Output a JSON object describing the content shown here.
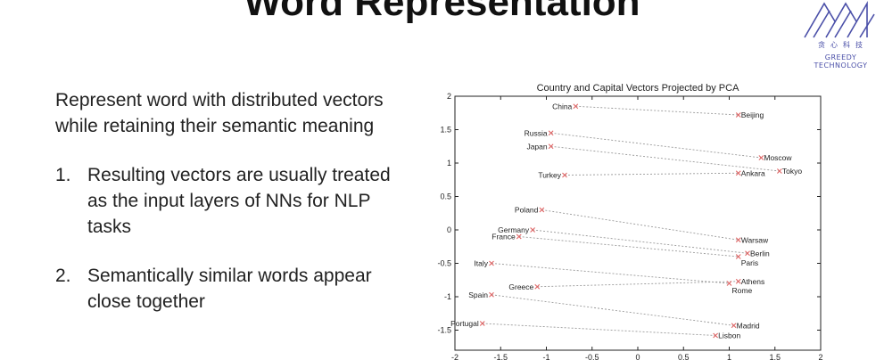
{
  "slide": {
    "title": "Word Representation",
    "intro": "Represent word with distributed vectors while retaining their semantic meaning",
    "points": [
      {
        "number": "1.",
        "text": "Resulting vectors are usually treated as the input layers of NNs for NLP tasks"
      },
      {
        "number": "2.",
        "text": "Semantically similar words appear close together"
      }
    ]
  },
  "logo": {
    "chinese": "贪心科技",
    "english": "GREEDY TECHNOLOGY",
    "color": "#4a4fa8"
  },
  "chart_data": {
    "type": "scatter",
    "title": "Country and Capital Vectors Projected by PCA",
    "xlabel": "",
    "ylabel": "",
    "xlim": [
      -2,
      2
    ],
    "ylim": [
      -1.8,
      2.0
    ],
    "xticks": [
      "-2",
      "-1.5",
      "-1",
      "-0.5",
      "0",
      "0.5",
      "1",
      "1.5",
      "2"
    ],
    "yticks": [
      "2",
      "1.5",
      "1",
      "0.5",
      "0",
      "-0.5",
      "-1",
      "-1.5"
    ],
    "grid": false,
    "point_color": "#e06666",
    "line_color": "#9a9a9a",
    "countries": [
      {
        "name": "China",
        "x": -0.68,
        "y": 1.85
      },
      {
        "name": "Russia",
        "x": -0.95,
        "y": 1.45
      },
      {
        "name": "Japan",
        "x": -0.95,
        "y": 1.25
      },
      {
        "name": "Turkey",
        "x": -0.8,
        "y": 0.82
      },
      {
        "name": "Poland",
        "x": -1.05,
        "y": 0.3
      },
      {
        "name": "Germany",
        "x": -1.15,
        "y": 0.0
      },
      {
        "name": "France",
        "x": -1.3,
        "y": -0.1
      },
      {
        "name": "Italy",
        "x": -1.6,
        "y": -0.5
      },
      {
        "name": "Greece",
        "x": -1.1,
        "y": -0.85
      },
      {
        "name": "Spain",
        "x": -1.6,
        "y": -0.97
      },
      {
        "name": "Portugal",
        "x": -1.7,
        "y": -1.4
      }
    ],
    "capitals": [
      {
        "name": "Beijing",
        "x": 1.1,
        "y": 1.72
      },
      {
        "name": "Moscow",
        "x": 1.35,
        "y": 1.08
      },
      {
        "name": "Tokyo",
        "x": 1.55,
        "y": 0.88
      },
      {
        "name": "Ankara",
        "x": 1.1,
        "y": 0.85
      },
      {
        "name": "Warsaw",
        "x": 1.1,
        "y": -0.15
      },
      {
        "name": "Berlin",
        "x": 1.2,
        "y": -0.35
      },
      {
        "name": "Paris",
        "x": 1.1,
        "y": -0.4
      },
      {
        "name": "Athens",
        "x": 1.1,
        "y": -0.77
      },
      {
        "name": "Rome",
        "x": 1.0,
        "y": -0.8
      },
      {
        "name": "Madrid",
        "x": 1.05,
        "y": -1.43
      },
      {
        "name": "Lisbon",
        "x": 0.85,
        "y": -1.58
      }
    ],
    "pairs": [
      [
        "China",
        "Beijing"
      ],
      [
        "Russia",
        "Moscow"
      ],
      [
        "Japan",
        "Tokyo"
      ],
      [
        "Turkey",
        "Ankara"
      ],
      [
        "Poland",
        "Warsaw"
      ],
      [
        "Germany",
        "Berlin"
      ],
      [
        "France",
        "Paris"
      ],
      [
        "Italy",
        "Rome"
      ],
      [
        "Greece",
        "Athens"
      ],
      [
        "Spain",
        "Madrid"
      ],
      [
        "Portugal",
        "Lisbon"
      ]
    ]
  }
}
